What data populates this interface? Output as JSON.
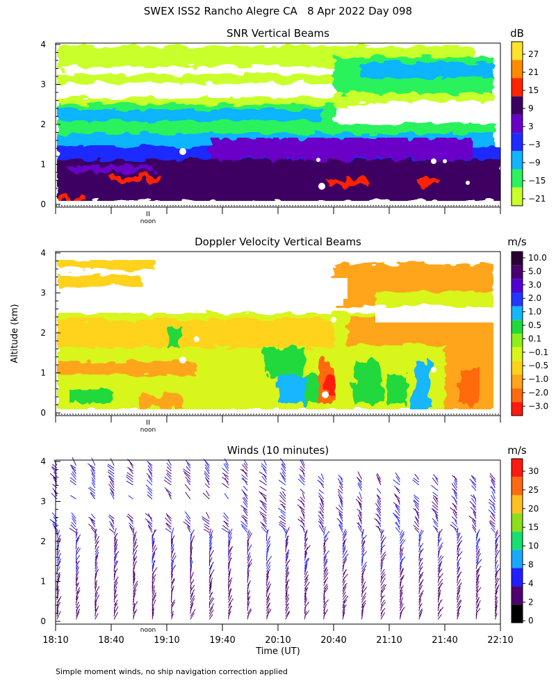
{
  "title": "SWEX ISS2 Rancho Alegre CA   8 Apr 2022 Day 098",
  "ylabel": "Altitude (km)",
  "xlabel": "Time (UT)",
  "footnote": "Simple moment winds, no ship navigation correction applied",
  "noon_label": "noon",
  "noon_mark": "II",
  "y_ticks": [
    "0",
    "1",
    "2",
    "3",
    "4"
  ],
  "x_ticks": [
    "18:10",
    "18:40",
    "19:10",
    "19:40",
    "20:10",
    "20:40",
    "21:10",
    "21:40",
    "22:10"
  ],
  "chart_data": [
    {
      "type": "heatmap",
      "title": "SNR Vertical Beams",
      "unit": "dB",
      "xlim": [
        "18:10",
        "22:10"
      ],
      "ylim": [
        0,
        4
      ],
      "colorbar": {
        "labels": [
          "27",
          "21",
          "15",
          "9",
          "3",
          "−3",
          "−9",
          "−15",
          "−21"
        ],
        "colors": [
          "#ffe32a",
          "#ff8a00",
          "#ff2300",
          "#3c0062",
          "#6a00c8",
          "#1f2bff",
          "#11b4ff",
          "#2cf25d",
          "#c9ff2a"
        ]
      },
      "layers": [
        {
          "from_km": 0.1,
          "to_km": 0.6,
          "level": "9 to 15"
        },
        {
          "from_km": 0.6,
          "to_km": 1.6,
          "level": "3 to 9"
        },
        {
          "from_km": 1.6,
          "to_km": 2.2,
          "level": "−9 to −3"
        },
        {
          "from_km": 2.2,
          "to_km": 2.5,
          "level": "−15 to −9"
        },
        {
          "from_km": 2.5,
          "to_km": 3.8,
          "level": "−21 to −15"
        }
      ]
    },
    {
      "type": "heatmap",
      "title": "Doppler Velocity Vertical Beams",
      "unit": "m/s",
      "xlim": [
        "18:10",
        "22:10"
      ],
      "ylim": [
        0,
        4
      ],
      "colorbar": {
        "labels": [
          "10.0",
          "5.0",
          "3.0",
          "2.0",
          "1.0",
          "0.5",
          "0.1",
          "−0.1",
          "−0.5",
          "−1.0",
          "−2.0",
          "−3.0"
        ],
        "colors": [
          "#2a0034",
          "#4a0070",
          "#5200d4",
          "#2336ff",
          "#15b7ff",
          "#21d93d",
          "#8bf01a",
          "#d8f51a",
          "#ffd21a",
          "#ffa51a",
          "#ff6a10",
          "#ff1a10"
        ]
      },
      "dominant_range": "−0.5 to 0.5"
    },
    {
      "type": "scatter",
      "title": "Winds (10 minutes)",
      "unit": "m/s",
      "xlim": [
        "18:10",
        "22:10"
      ],
      "ylim": [
        0,
        4
      ],
      "profile_times": [
        "18:10",
        "18:20",
        "18:30",
        "18:40",
        "18:50",
        "19:00",
        "19:10",
        "19:20",
        "19:30",
        "19:40",
        "19:50",
        "20:00",
        "20:10",
        "20:20",
        "20:30",
        "20:40",
        "20:50",
        "21:00",
        "21:10",
        "21:20",
        "21:30",
        "21:40",
        "21:50",
        "22:00"
      ],
      "colorbar": {
        "labels": [
          "30",
          "25",
          "20",
          "15",
          "10",
          "8",
          "4",
          "2",
          "0"
        ],
        "colors": [
          "#ff1a10",
          "#ff6a10",
          "#ffc020",
          "#8be01a",
          "#18e070",
          "#18a8ff",
          "#2020ff",
          "#500070",
          "#000000"
        ]
      },
      "typical_speed": "2 to 8"
    }
  ]
}
